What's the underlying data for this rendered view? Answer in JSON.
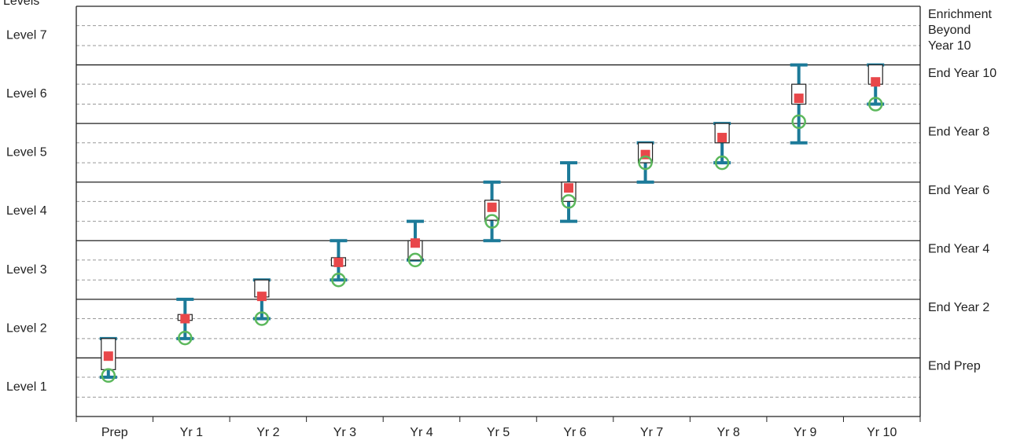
{
  "chart_data": {
    "type": "range",
    "y_axis_label": "Levels",
    "categories": [
      "Prep",
      "Yr 1",
      "Yr 2",
      "Yr 3",
      "Yr 4",
      "Yr 5",
      "Yr 6",
      "Yr 7",
      "Yr 8",
      "Yr 9",
      "Yr 10"
    ],
    "whisker_high": [
      1.33,
      2.0,
      2.33,
      3.0,
      3.33,
      4.0,
      4.33,
      4.67,
      5.0,
      6.0,
      6.0
    ],
    "whisker_low": [
      0.67,
      1.33,
      1.67,
      2.33,
      2.67,
      3.0,
      3.33,
      4.0,
      4.33,
      4.67,
      5.33
    ],
    "box_high": [
      1.33,
      1.74,
      2.33,
      2.71,
      3.0,
      3.69,
      4.0,
      4.67,
      5.0,
      5.67,
      6.0
    ],
    "box_low": [
      0.8,
      1.64,
      2.04,
      2.57,
      2.67,
      3.35,
      3.67,
      4.33,
      4.67,
      5.33,
      5.67
    ],
    "square_values": [
      1.03,
      1.67,
      2.05,
      2.63,
      2.96,
      3.57,
      3.9,
      4.47,
      4.76,
      5.43,
      5.71
    ],
    "circle_values": [
      0.7,
      1.34,
      1.67,
      2.33,
      2.67,
      3.33,
      3.67,
      4.33,
      4.33,
      5.03,
      5.33
    ],
    "whisker_color": "#1c7a99",
    "square_color": "#e8474a",
    "circle_color": "#5cb85c",
    "levels": [
      "Level 1",
      "Level 2",
      "Level 3",
      "Level 4",
      "Level 5",
      "Level 6",
      "Level 7"
    ],
    "milestones": [
      {
        "value": 1,
        "label": [
          "End Prep"
        ]
      },
      {
        "value": 2,
        "label": [
          "End Year 2"
        ]
      },
      {
        "value": 3,
        "label": [
          "End Year 4"
        ]
      },
      {
        "value": 4,
        "label": [
          "End Year 6"
        ]
      },
      {
        "value": 5,
        "label": [
          "End Year 8"
        ]
      },
      {
        "value": 6,
        "label": [
          "End Year 10"
        ]
      },
      {
        "value": 7,
        "label": [
          "Enrichment",
          "Beyond",
          "Year 10"
        ]
      }
    ],
    "ylim": [
      0,
      7
    ],
    "yticks": [
      0,
      1,
      2,
      3,
      4,
      5,
      6,
      7
    ],
    "minor_yticks": [
      0.33,
      0.67,
      1.33,
      1.67,
      2.33,
      2.67,
      3.33,
      3.67,
      4.33,
      4.67,
      5.33,
      5.67,
      6.33,
      6.67
    ],
    "grid": true
  }
}
